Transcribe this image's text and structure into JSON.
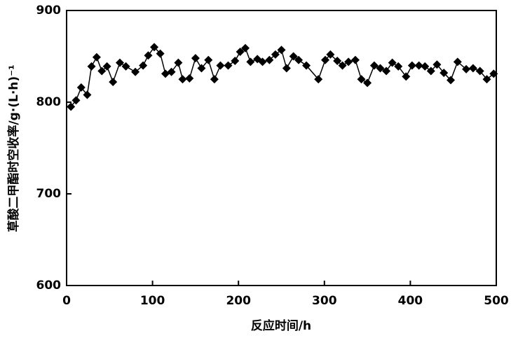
{
  "chart_data": {
    "type": "line",
    "x_label": "反应时间/h",
    "y_label": "草酸二甲酯时空收率/g·(L·h)⁻¹",
    "xlim": [
      0,
      500
    ],
    "xticks": [
      0,
      100,
      200,
      300,
      400,
      500
    ],
    "ylim": [
      600,
      900
    ],
    "yticks": [
      600,
      700,
      800,
      900
    ],
    "series": [
      {
        "color": "#000000",
        "x": [
          5,
          11,
          17,
          24,
          29,
          35,
          41,
          47,
          54,
          62,
          69,
          80,
          89,
          95,
          102,
          109,
          115,
          122,
          130,
          135,
          143,
          150,
          157,
          165,
          172,
          179,
          188,
          196,
          202,
          208,
          214,
          222,
          228,
          236,
          243,
          250,
          256,
          264,
          270,
          279,
          293,
          301,
          307,
          315,
          321,
          328,
          336,
          343,
          350,
          358,
          365,
          372,
          379,
          386,
          395,
          402,
          410,
          417,
          424,
          431,
          439,
          447,
          455,
          465,
          473,
          481,
          489,
          497
        ],
        "values": [
          795,
          802,
          816,
          808,
          839,
          849,
          834,
          839,
          822,
          843,
          839,
          833,
          840,
          851,
          860,
          853,
          831,
          833,
          843,
          825,
          826,
          848,
          837,
          846,
          825,
          840,
          840,
          845,
          855,
          859,
          844,
          847,
          844,
          846,
          852,
          857,
          837,
          850,
          846,
          840,
          825,
          846,
          852,
          845,
          840,
          844,
          846,
          825,
          821,
          840,
          837,
          834,
          843,
          839,
          828,
          840,
          840,
          839,
          834,
          841,
          832,
          824,
          844,
          836,
          837,
          834,
          825,
          831
        ]
      }
    ]
  }
}
